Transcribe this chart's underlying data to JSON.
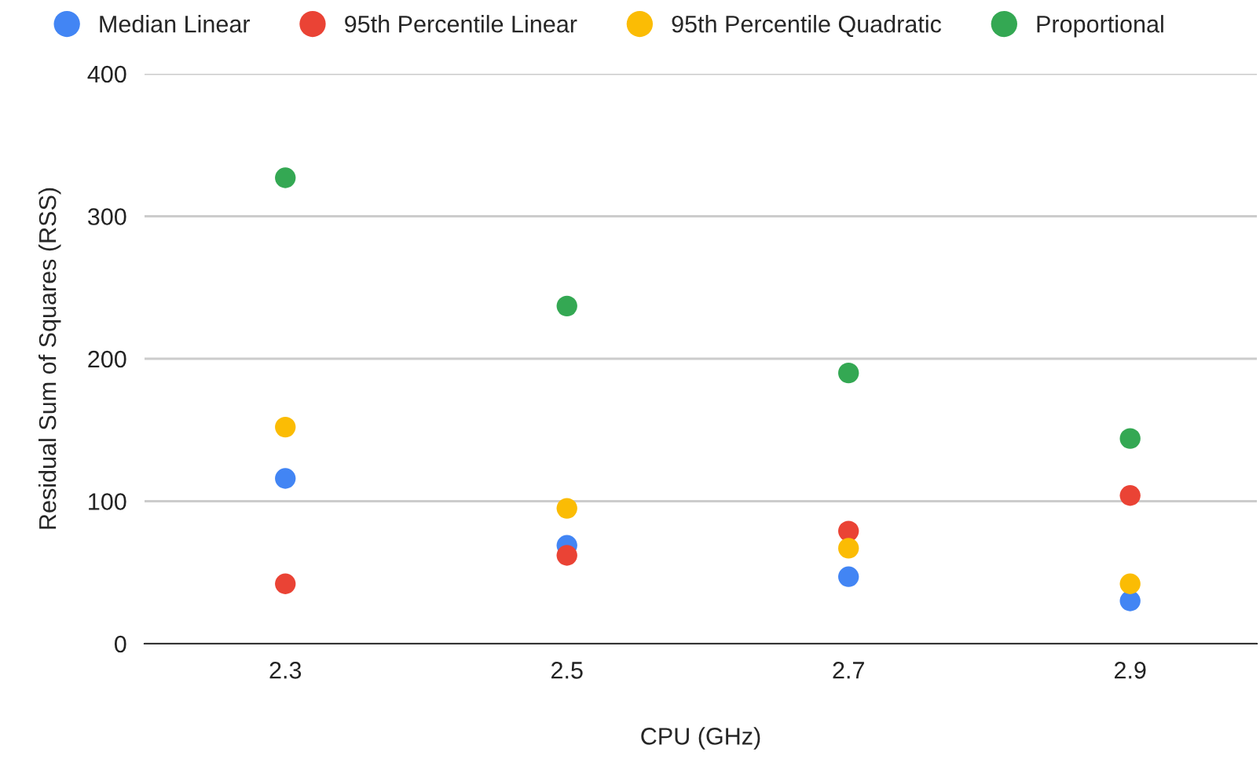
{
  "chart_data": {
    "type": "scatter",
    "xlabel": "CPU (GHz)",
    "ylabel": "Residual Sum of Squares (RSS)",
    "categories": [
      "2.3",
      "2.5",
      "2.7",
      "2.9"
    ],
    "series": [
      {
        "name": "Median Linear",
        "color": "#4285f4",
        "values": [
          116,
          69,
          47,
          30
        ]
      },
      {
        "name": "95th Percentile Linear",
        "color": "#ea4335",
        "values": [
          42,
          62,
          79,
          104
        ]
      },
      {
        "name": "95th Percentile Quadratic",
        "color": "#fbbc04",
        "values": [
          152,
          95,
          67,
          42
        ]
      },
      {
        "name": "Proportional",
        "color": "#34a853",
        "values": [
          327,
          237,
          190,
          144
        ]
      }
    ],
    "ylim": [
      0,
      400
    ],
    "yticks": [
      0,
      100,
      200,
      300,
      400
    ],
    "grid": "y",
    "legend": "top",
    "marker": "circle"
  }
}
